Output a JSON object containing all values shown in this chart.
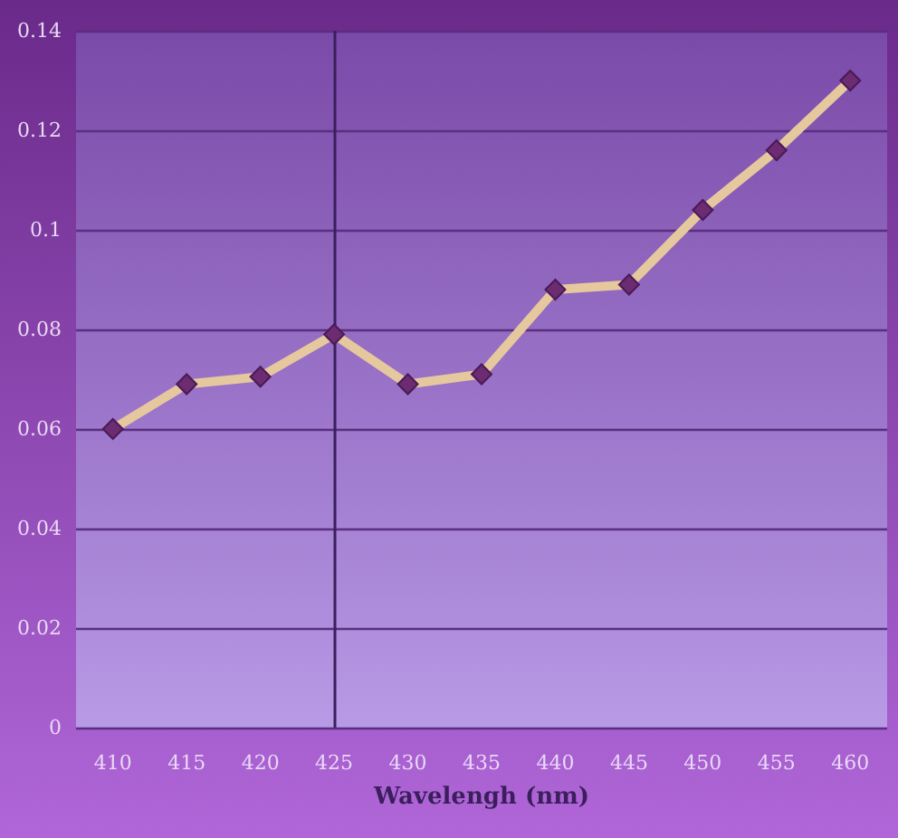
{
  "chart_data": {
    "type": "line",
    "xlabel": "Wavelengh (nm)",
    "categories": [
      "410",
      "415",
      "420",
      "425",
      "430",
      "435",
      "440",
      "445",
      "450",
      "455",
      "460"
    ],
    "series": [
      {
        "color": "#e6c89e",
        "values": [
          0.06,
          0.069,
          0.0705,
          0.079,
          0.069,
          0.071,
          0.088,
          0.089,
          0.104,
          0.116,
          0.13
        ]
      }
    ],
    "ylim": [
      0,
      0.14
    ],
    "yticks": [
      0,
      0.02,
      0.04,
      0.06,
      0.08,
      0.1,
      0.12,
      0.14
    ],
    "grid": "y",
    "marker": "diamond",
    "line_style": "solid",
    "ref_lines": [
      {
        "axis": "x",
        "value": "425",
        "color": "#3a1f5c"
      }
    ]
  }
}
